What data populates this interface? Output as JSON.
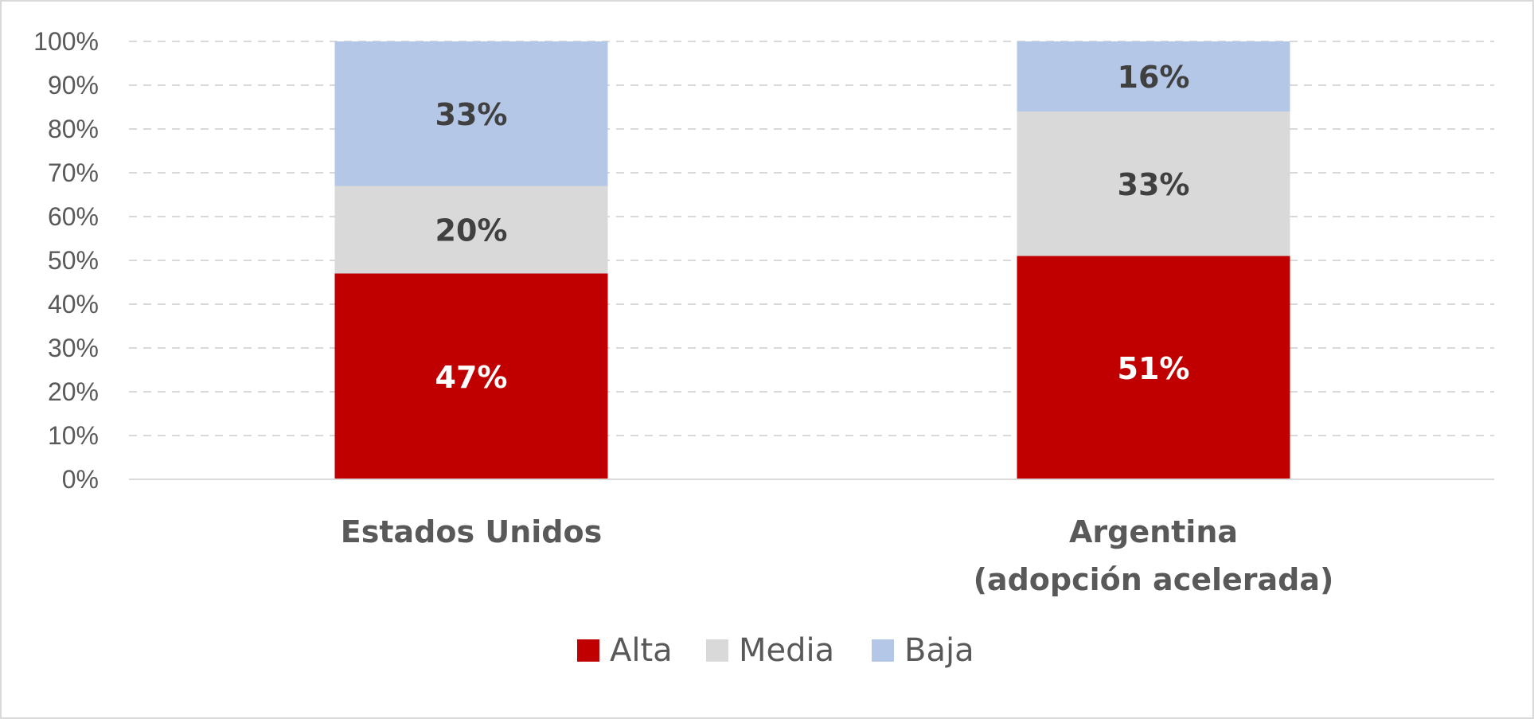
{
  "chart_data": {
    "type": "bar",
    "stacked": true,
    "percent": true,
    "categories": [
      [
        "Estados Unidos"
      ],
      [
        "Argentina",
        "(adopción acelerada)"
      ]
    ],
    "series": [
      {
        "name": "Alta",
        "values": [
          47,
          51
        ],
        "labels": [
          "47%",
          "51%"
        ],
        "color": "#c00000",
        "label_color": "#ffffff"
      },
      {
        "name": "Media",
        "values": [
          20,
          33
        ],
        "labels": [
          "20%",
          "33%"
        ],
        "color": "#d9d9d9",
        "label_color": "#404040"
      },
      {
        "name": "Baja",
        "values": [
          33,
          16
        ],
        "labels": [
          "33%",
          "16%"
        ],
        "color": "#b4c7e7",
        "label_color": "#404040"
      }
    ],
    "ylim": [
      0,
      100
    ],
    "yticks": [
      "0%",
      "10%",
      "20%",
      "30%",
      "40%",
      "50%",
      "60%",
      "70%",
      "80%",
      "90%",
      "100%"
    ],
    "grid": true,
    "legend_position": "bottom",
    "title": "",
    "xlabel": "",
    "ylabel": ""
  }
}
